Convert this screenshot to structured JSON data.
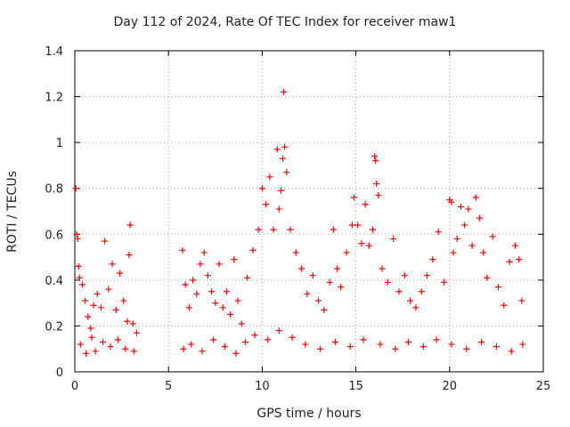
{
  "chart_data": {
    "type": "scatter",
    "title": "Day 112 of 2024, Rate Of TEC Index for receiver maw1",
    "xlabel": "GPS time / hours",
    "ylabel": "ROTI / TECUs",
    "xlim": [
      0,
      25
    ],
    "ylim": [
      0,
      1.4
    ],
    "xticks": [
      0,
      5,
      10,
      15,
      20,
      25
    ],
    "yticks": [
      0,
      0.2,
      0.4,
      0.6,
      0.8,
      1,
      1.2,
      1.4
    ],
    "ytick_labels": [
      "0",
      "0.2",
      "0.4",
      "0.6",
      "0.8",
      "1",
      "1.2",
      "1.4"
    ],
    "grid": true,
    "marker": "+",
    "color": "#ff0000",
    "series": [
      {
        "points": [
          [
            0.05,
            0.8
          ],
          [
            0.1,
            0.6
          ],
          [
            0.15,
            0.58
          ],
          [
            0.2,
            0.46
          ],
          [
            0.25,
            0.41
          ],
          [
            0.4,
            0.38
          ],
          [
            0.55,
            0.31
          ],
          [
            0.7,
            0.24
          ],
          [
            0.85,
            0.19
          ],
          [
            1.0,
            0.29
          ],
          [
            1.2,
            0.34
          ],
          [
            1.4,
            0.28
          ],
          [
            1.6,
            0.57
          ],
          [
            1.8,
            0.36
          ],
          [
            2.0,
            0.47
          ],
          [
            2.2,
            0.27
          ],
          [
            2.4,
            0.43
          ],
          [
            2.6,
            0.31
          ],
          [
            2.8,
            0.22
          ],
          [
            2.9,
            0.51
          ],
          [
            2.95,
            0.64
          ],
          [
            3.1,
            0.21
          ],
          [
            3.3,
            0.17
          ],
          [
            5.75,
            0.53
          ],
          [
            5.9,
            0.38
          ],
          [
            6.1,
            0.28
          ],
          [
            6.3,
            0.4
          ],
          [
            6.5,
            0.34
          ],
          [
            6.7,
            0.47
          ],
          [
            6.9,
            0.52
          ],
          [
            7.1,
            0.42
          ],
          [
            7.3,
            0.35
          ],
          [
            7.5,
            0.3
          ],
          [
            7.7,
            0.47
          ],
          [
            7.9,
            0.28
          ],
          [
            8.1,
            0.35
          ],
          [
            8.3,
            0.25
          ],
          [
            8.5,
            0.49
          ],
          [
            8.7,
            0.31
          ],
          [
            8.9,
            0.21
          ],
          [
            9.2,
            0.41
          ],
          [
            9.5,
            0.53
          ],
          [
            9.8,
            0.62
          ],
          [
            10.0,
            0.8
          ],
          [
            10.2,
            0.73
          ],
          [
            10.4,
            0.85
          ],
          [
            10.6,
            0.62
          ],
          [
            10.8,
            0.97
          ],
          [
            10.9,
            0.71
          ],
          [
            11.0,
            0.79
          ],
          [
            11.1,
            0.93
          ],
          [
            11.15,
            1.22
          ],
          [
            11.2,
            0.98
          ],
          [
            11.3,
            0.87
          ],
          [
            11.5,
            0.62
          ],
          [
            11.8,
            0.52
          ],
          [
            12.1,
            0.45
          ],
          [
            12.4,
            0.34
          ],
          [
            12.7,
            0.42
          ],
          [
            13.0,
            0.31
          ],
          [
            13.3,
            0.27
          ],
          [
            13.6,
            0.39
          ],
          [
            13.8,
            0.62
          ],
          [
            14.0,
            0.45
          ],
          [
            14.2,
            0.37
          ],
          [
            14.5,
            0.52
          ],
          [
            14.8,
            0.64
          ],
          [
            14.9,
            0.76
          ],
          [
            15.1,
            0.64
          ],
          [
            15.3,
            0.56
          ],
          [
            15.5,
            0.73
          ],
          [
            15.7,
            0.55
          ],
          [
            15.9,
            0.62
          ],
          [
            16.0,
            0.94
          ],
          [
            16.05,
            0.92
          ],
          [
            16.1,
            0.82
          ],
          [
            16.2,
            0.77
          ],
          [
            16.4,
            0.45
          ],
          [
            16.7,
            0.39
          ],
          [
            17.0,
            0.58
          ],
          [
            17.3,
            0.35
          ],
          [
            17.6,
            0.42
          ],
          [
            17.9,
            0.31
          ],
          [
            18.2,
            0.28
          ],
          [
            18.5,
            0.35
          ],
          [
            18.8,
            0.42
          ],
          [
            19.1,
            0.49
          ],
          [
            19.4,
            0.61
          ],
          [
            19.7,
            0.39
          ],
          [
            20.0,
            0.75
          ],
          [
            20.1,
            0.74
          ],
          [
            20.2,
            0.52
          ],
          [
            20.4,
            0.58
          ],
          [
            20.6,
            0.72
          ],
          [
            20.8,
            0.64
          ],
          [
            21.0,
            0.71
          ],
          [
            21.2,
            0.55
          ],
          [
            21.4,
            0.76
          ],
          [
            21.6,
            0.67
          ],
          [
            21.8,
            0.52
          ],
          [
            22.0,
            0.41
          ],
          [
            22.3,
            0.59
          ],
          [
            22.6,
            0.37
          ],
          [
            22.9,
            0.29
          ],
          [
            23.2,
            0.48
          ],
          [
            23.5,
            0.55
          ],
          [
            23.7,
            0.49
          ],
          [
            23.85,
            0.31
          ],
          [
            0.3,
            0.12
          ],
          [
            0.6,
            0.08
          ],
          [
            0.9,
            0.15
          ],
          [
            1.1,
            0.09
          ],
          [
            1.5,
            0.13
          ],
          [
            1.9,
            0.11
          ],
          [
            2.3,
            0.14
          ],
          [
            2.7,
            0.1
          ],
          [
            3.15,
            0.09
          ],
          [
            5.8,
            0.1
          ],
          [
            6.2,
            0.12
          ],
          [
            6.8,
            0.09
          ],
          [
            7.4,
            0.14
          ],
          [
            8.0,
            0.11
          ],
          [
            8.6,
            0.08
          ],
          [
            9.1,
            0.13
          ],
          [
            9.6,
            0.16
          ],
          [
            10.3,
            0.14
          ],
          [
            10.9,
            0.18
          ],
          [
            11.6,
            0.15
          ],
          [
            12.3,
            0.12
          ],
          [
            13.1,
            0.1
          ],
          [
            13.9,
            0.13
          ],
          [
            14.7,
            0.11
          ],
          [
            15.4,
            0.14
          ],
          [
            16.3,
            0.12
          ],
          [
            17.1,
            0.1
          ],
          [
            17.8,
            0.13
          ],
          [
            18.6,
            0.11
          ],
          [
            19.3,
            0.14
          ],
          [
            20.1,
            0.12
          ],
          [
            20.9,
            0.1
          ],
          [
            21.7,
            0.13
          ],
          [
            22.5,
            0.11
          ],
          [
            23.3,
            0.09
          ],
          [
            23.9,
            0.12
          ]
        ]
      }
    ]
  }
}
